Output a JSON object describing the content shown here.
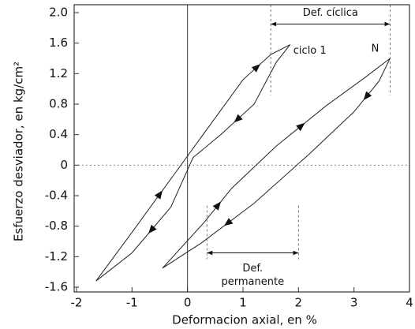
{
  "chart_data": {
    "type": "line",
    "xlabel": "Deformacion axial, en %",
    "ylabel": "Esfuerzo desviador, en kg/cm²",
    "xlim": [
      -2,
      4
    ],
    "xticks": [
      -2,
      -1,
      0,
      1,
      2,
      3,
      4
    ],
    "ylim": [
      -1.6,
      2.0
    ],
    "yticks": [
      -1.6,
      -1.2,
      -0.8,
      -0.4,
      0,
      0.4,
      0.8,
      1.2,
      1.6,
      {
        "value": 2.0,
        "label": "2.0"
      }
    ],
    "series": [
      {
        "name": "ciclo 1",
        "color": "#222222",
        "x": [
          -1.65,
          -1.0,
          0,
          1.0,
          1.5,
          1.85,
          1.6,
          1.2,
          0.6,
          0.1,
          -0.3,
          -1.0,
          -1.65
        ],
        "y": [
          -1.52,
          -0.88,
          0.12,
          1.12,
          1.45,
          1.58,
          1.35,
          0.8,
          0.4,
          0.1,
          -0.55,
          -1.15,
          -1.52
        ]
      },
      {
        "name": "N",
        "color": "#222222",
        "x": [
          -0.45,
          0.3,
          0.8,
          1.6,
          2.5,
          3.2,
          3.65,
          3.45,
          3.0,
          2.2,
          1.2,
          0.25,
          -0.45
        ],
        "y": [
          -1.35,
          -0.75,
          -0.3,
          0.25,
          0.78,
          1.15,
          1.4,
          1.1,
          0.7,
          0.15,
          -0.5,
          -1.02,
          -1.35
        ]
      }
    ],
    "annotations": [
      {
        "label": [
          "Def. cíclica"
        ],
        "x": [
          1.5,
          3.65
        ],
        "y": 1.85
      },
      {
        "label": [
          "Def.",
          "permanente"
        ],
        "x": [
          0.35,
          2.0
        ],
        "y": -1.15
      }
    ]
  }
}
